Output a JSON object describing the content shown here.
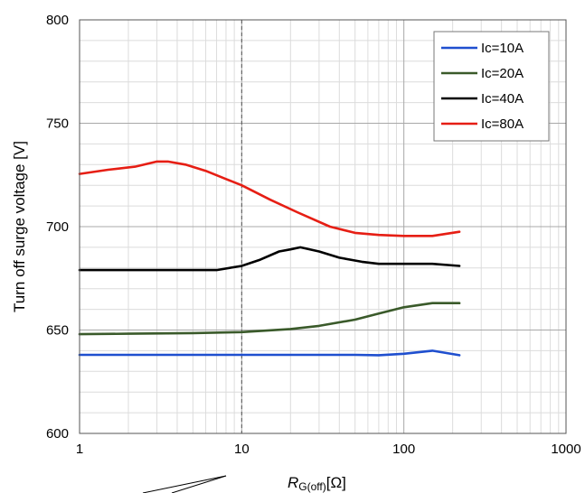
{
  "chart_data": {
    "type": "line",
    "xscale": "log",
    "xlim": [
      1,
      1000
    ],
    "ylim": [
      600,
      800
    ],
    "grid": true,
    "legend_position": "top-right",
    "xlabel_main": "R",
    "xlabel_sub": "G(off)",
    "xlabel_unit": "[Ω]",
    "ylabel": "Turn off surge voltage [V]",
    "x_tick_labels": [
      {
        "value": 1,
        "label": "1"
      },
      {
        "value": 10,
        "label": "10"
      },
      {
        "value": 100,
        "label": "100"
      },
      {
        "value": 1000,
        "label": "1000"
      }
    ],
    "y_tick_labels": [
      {
        "value": 600,
        "label": "600"
      },
      {
        "value": 650,
        "label": "650"
      },
      {
        "value": 700,
        "label": "700"
      },
      {
        "value": 750,
        "label": "750"
      },
      {
        "value": 800,
        "label": "800"
      }
    ],
    "reference_line_x": 10,
    "series": [
      {
        "name": "Ic=10A",
        "color": "#1f4fcf",
        "points": [
          [
            1,
            638
          ],
          [
            2,
            638
          ],
          [
            5,
            638
          ],
          [
            10,
            638
          ],
          [
            20,
            638
          ],
          [
            50,
            638
          ],
          [
            70,
            637.8
          ],
          [
            100,
            638.5
          ],
          [
            150,
            640
          ],
          [
            220,
            637.8
          ]
        ]
      },
      {
        "name": "Ic=20A",
        "color": "#3a5a2a",
        "points": [
          [
            1,
            648
          ],
          [
            2,
            648.2
          ],
          [
            5,
            648.5
          ],
          [
            10,
            649
          ],
          [
            20,
            650.5
          ],
          [
            30,
            652
          ],
          [
            50,
            655
          ],
          [
            70,
            658
          ],
          [
            100,
            661
          ],
          [
            150,
            663
          ],
          [
            220,
            663
          ]
        ]
      },
      {
        "name": "Ic=40A",
        "color": "#000000",
        "points": [
          [
            1,
            679
          ],
          [
            2,
            679
          ],
          [
            4,
            679
          ],
          [
            7,
            679
          ],
          [
            10,
            681
          ],
          [
            13,
            684
          ],
          [
            17,
            688
          ],
          [
            20,
            689
          ],
          [
            23,
            690
          ],
          [
            30,
            688
          ],
          [
            40,
            685
          ],
          [
            55,
            683
          ],
          [
            70,
            682
          ],
          [
            100,
            682
          ],
          [
            150,
            682
          ],
          [
            220,
            681
          ]
        ]
      },
      {
        "name": "Ic=80A",
        "color": "#e61e14",
        "points": [
          [
            1,
            725.5
          ],
          [
            1.5,
            727.5
          ],
          [
            2.2,
            729
          ],
          [
            3,
            731.5
          ],
          [
            3.5,
            731.5
          ],
          [
            4.5,
            730
          ],
          [
            6,
            727
          ],
          [
            8,
            723
          ],
          [
            10,
            720
          ],
          [
            15,
            713
          ],
          [
            22,
            707
          ],
          [
            35,
            700
          ],
          [
            50,
            697
          ],
          [
            70,
            696
          ],
          [
            100,
            695.5
          ],
          [
            150,
            695.5
          ],
          [
            220,
            697.5
          ]
        ]
      }
    ]
  }
}
